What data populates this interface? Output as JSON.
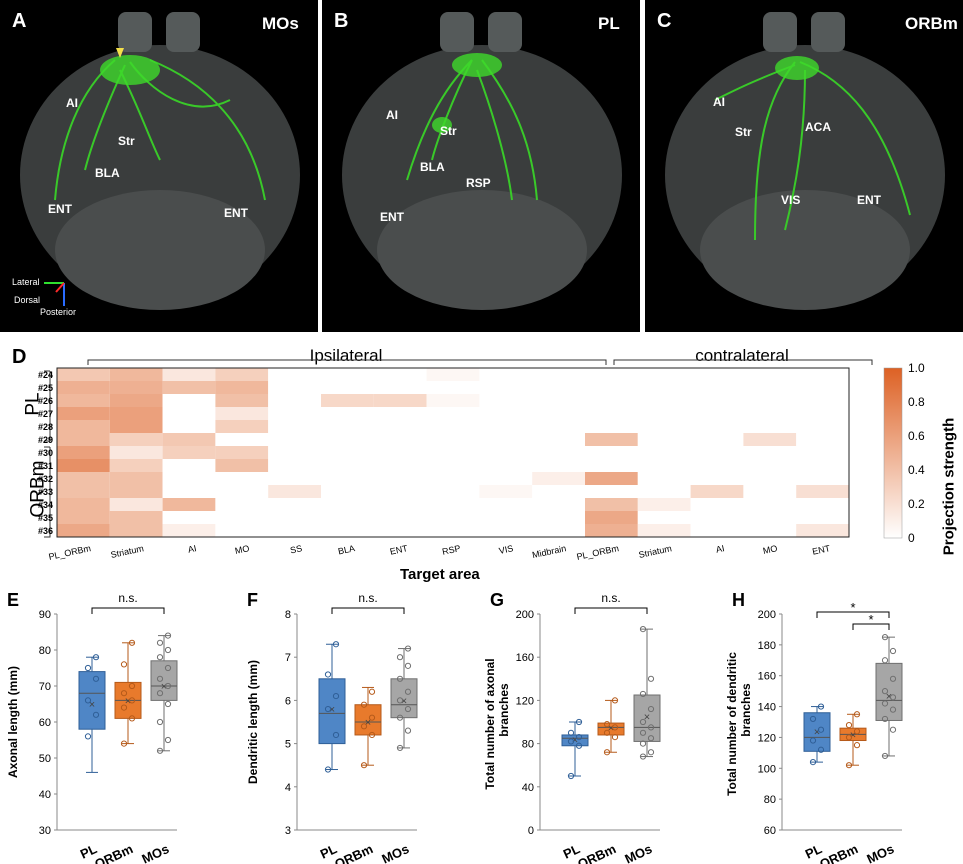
{
  "panels_brain": [
    {
      "letter": "A",
      "title": "MOs",
      "regions": [
        "AI",
        "Str",
        "BLA",
        "ENT",
        "ENT"
      ]
    },
    {
      "letter": "B",
      "title": "PL",
      "regions": [
        "AI",
        "Str",
        "BLA",
        "RSP",
        "ENT"
      ]
    },
    {
      "letter": "C",
      "title": "ORBm",
      "regions": [
        "AI",
        "Str",
        "ACA",
        "VIS",
        "ENT"
      ]
    }
  ],
  "orientation": {
    "lateral": "Lateral",
    "dorsal": "Dorsal",
    "posterior": "Posterior"
  },
  "heatmap": {
    "letter": "D",
    "ipsilateral_label": "Ipsilateral",
    "contralateral_label": "contralateral",
    "group_pl": "PL",
    "group_orbm": "ORBm",
    "rows": [
      "#24",
      "#25",
      "#26",
      "#27",
      "#28",
      "#29",
      "#30",
      "#31",
      "#32",
      "#33",
      "#34",
      "#35",
      "#36"
    ],
    "columns": [
      "PL_ORBm",
      "Striatum",
      "AI",
      "MO",
      "SS",
      "BLA",
      "ENT",
      "RSP",
      "VIS",
      "Midbrain",
      "PL_ORBm",
      "Striatum",
      "AI",
      "MO",
      "ENT"
    ],
    "xlabel": "Target area",
    "colorbar_label": "Projection strength",
    "colorbar_ticks": [
      "1.0",
      "0.8",
      "0.6",
      "0.4",
      "0.2",
      "0"
    ],
    "values": [
      [
        0.35,
        0.45,
        0.15,
        0.3,
        0,
        0,
        0,
        0.05,
        0,
        0,
        0,
        0,
        0,
        0,
        0
      ],
      [
        0.5,
        0.5,
        0.4,
        0.45,
        0,
        0,
        0,
        0,
        0,
        0,
        0,
        0,
        0,
        0,
        0
      ],
      [
        0.45,
        0.55,
        0,
        0.4,
        0,
        0.25,
        0.25,
        0.05,
        0,
        0,
        0,
        0,
        0,
        0,
        0
      ],
      [
        0.6,
        0.6,
        0,
        0.15,
        0,
        0,
        0,
        0,
        0,
        0,
        0,
        0,
        0,
        0,
        0
      ],
      [
        0.45,
        0.6,
        0,
        0.3,
        0,
        0,
        0,
        0,
        0,
        0,
        0,
        0,
        0,
        0,
        0
      ],
      [
        0.45,
        0.3,
        0.35,
        0,
        0,
        0,
        0,
        0,
        0,
        0,
        0.4,
        0,
        0,
        0.2,
        0
      ],
      [
        0.6,
        0.15,
        0.3,
        0.3,
        0,
        0,
        0,
        0,
        0,
        0,
        0,
        0,
        0,
        0,
        0
      ],
      [
        0.7,
        0.3,
        0,
        0.4,
        0,
        0,
        0,
        0,
        0,
        0,
        0,
        0,
        0,
        0,
        0
      ],
      [
        0.4,
        0.4,
        0,
        0,
        0,
        0,
        0,
        0,
        0,
        0.1,
        0.55,
        0,
        0,
        0,
        0
      ],
      [
        0.4,
        0.4,
        0,
        0,
        0.15,
        0,
        0,
        0,
        0.05,
        0,
        0,
        0,
        0.25,
        0,
        0.2
      ],
      [
        0.45,
        0.15,
        0.45,
        0,
        0,
        0,
        0,
        0,
        0,
        0,
        0.4,
        0.1,
        0,
        0,
        0
      ],
      [
        0.45,
        0.4,
        0,
        0,
        0,
        0,
        0,
        0,
        0,
        0,
        0.55,
        0,
        0,
        0,
        0
      ],
      [
        0.55,
        0.4,
        0.1,
        0,
        0,
        0,
        0,
        0,
        0,
        0,
        0.5,
        0.1,
        0,
        0,
        0.15
      ]
    ]
  },
  "chart_data": [
    {
      "type": "box",
      "letter": "E",
      "ylabel": "Axonal length (mm)",
      "ylim": [
        30,
        90
      ],
      "ticks": [
        30,
        40,
        50,
        60,
        70,
        80,
        90
      ],
      "categories": [
        "PL",
        "ORBm",
        "MOs"
      ],
      "annotation": "n.s.",
      "boxes": [
        {
          "min": 46,
          "q1": 58,
          "median": 68,
          "q3": 74,
          "max": 78,
          "mean": 65,
          "points": [
            56,
            62,
            66,
            72,
            75,
            78
          ]
        },
        {
          "min": 54,
          "q1": 61,
          "median": 66,
          "q3": 71,
          "max": 82,
          "mean": 66,
          "points": [
            54,
            61,
            64,
            66,
            68,
            70,
            76,
            82
          ]
        },
        {
          "min": 52,
          "q1": 66,
          "median": 70,
          "q3": 77,
          "max": 84,
          "mean": 70,
          "points": [
            52,
            55,
            60,
            65,
            68,
            70,
            72,
            75,
            78,
            80,
            82,
            84
          ]
        }
      ]
    },
    {
      "type": "box",
      "letter": "F",
      "ylabel": "Dendritic length (mm)",
      "ylim": [
        3,
        8
      ],
      "ticks": [
        3,
        4,
        5,
        6,
        7,
        8
      ],
      "categories": [
        "PL",
        "ORBm",
        "MOs"
      ],
      "annotation": "n.s.",
      "boxes": [
        {
          "min": 4.4,
          "q1": 5.0,
          "median": 5.7,
          "q3": 6.5,
          "max": 7.3,
          "mean": 5.8,
          "points": [
            4.4,
            5.2,
            5.8,
            6.1,
            6.6,
            7.3
          ]
        },
        {
          "min": 4.5,
          "q1": 5.2,
          "median": 5.5,
          "q3": 5.9,
          "max": 6.3,
          "mean": 5.5,
          "points": [
            4.5,
            5.2,
            5.4,
            5.6,
            5.9,
            6.2
          ]
        },
        {
          "min": 4.9,
          "q1": 5.6,
          "median": 5.9,
          "q3": 6.5,
          "max": 7.2,
          "mean": 6.0,
          "points": [
            4.9,
            5.3,
            5.6,
            5.8,
            6.0,
            6.2,
            6.5,
            6.8,
            7.0,
            7.2
          ]
        }
      ]
    },
    {
      "type": "box",
      "letter": "G",
      "ylabel": "Total number of axonal branches",
      "ylim": [
        0,
        200
      ],
      "ticks": [
        0,
        40,
        80,
        120,
        160,
        200
      ],
      "categories": [
        "PL",
        "ORBm",
        "MOs"
      ],
      "annotation": "n.s.",
      "boxes": [
        {
          "min": 50,
          "q1": 78,
          "median": 85,
          "q3": 88,
          "max": 100,
          "mean": 84,
          "points": [
            50,
            78,
            82,
            86,
            90,
            100
          ]
        },
        {
          "min": 72,
          "q1": 88,
          "median": 95,
          "q3": 99,
          "max": 120,
          "mean": 95,
          "points": [
            72,
            86,
            90,
            95,
            98,
            120
          ]
        },
        {
          "min": 68,
          "q1": 82,
          "median": 95,
          "q3": 125,
          "max": 186,
          "mean": 105,
          "points": [
            68,
            72,
            80,
            85,
            90,
            95,
            100,
            112,
            126,
            140,
            186
          ]
        }
      ]
    },
    {
      "type": "box",
      "letter": "H",
      "ylabel": "Total number of dendritic branches",
      "ylim": [
        60,
        200
      ],
      "ticks": [
        60,
        80,
        100,
        120,
        140,
        160,
        180,
        200
      ],
      "categories": [
        "PL",
        "ORBm",
        "MOs"
      ],
      "annotation": "*",
      "boxes": [
        {
          "min": 104,
          "q1": 111,
          "median": 120,
          "q3": 136,
          "max": 140,
          "mean": 124,
          "points": [
            104,
            112,
            118,
            125,
            132,
            140
          ]
        },
        {
          "min": 102,
          "q1": 118,
          "median": 122,
          "q3": 126,
          "max": 135,
          "mean": 122,
          "points": [
            102,
            115,
            120,
            124,
            128,
            135
          ]
        },
        {
          "min": 108,
          "q1": 131,
          "median": 144,
          "q3": 168,
          "max": 185,
          "mean": 147,
          "points": [
            108,
            125,
            132,
            138,
            142,
            146,
            150,
            158,
            170,
            176,
            185
          ]
        }
      ]
    }
  ]
}
